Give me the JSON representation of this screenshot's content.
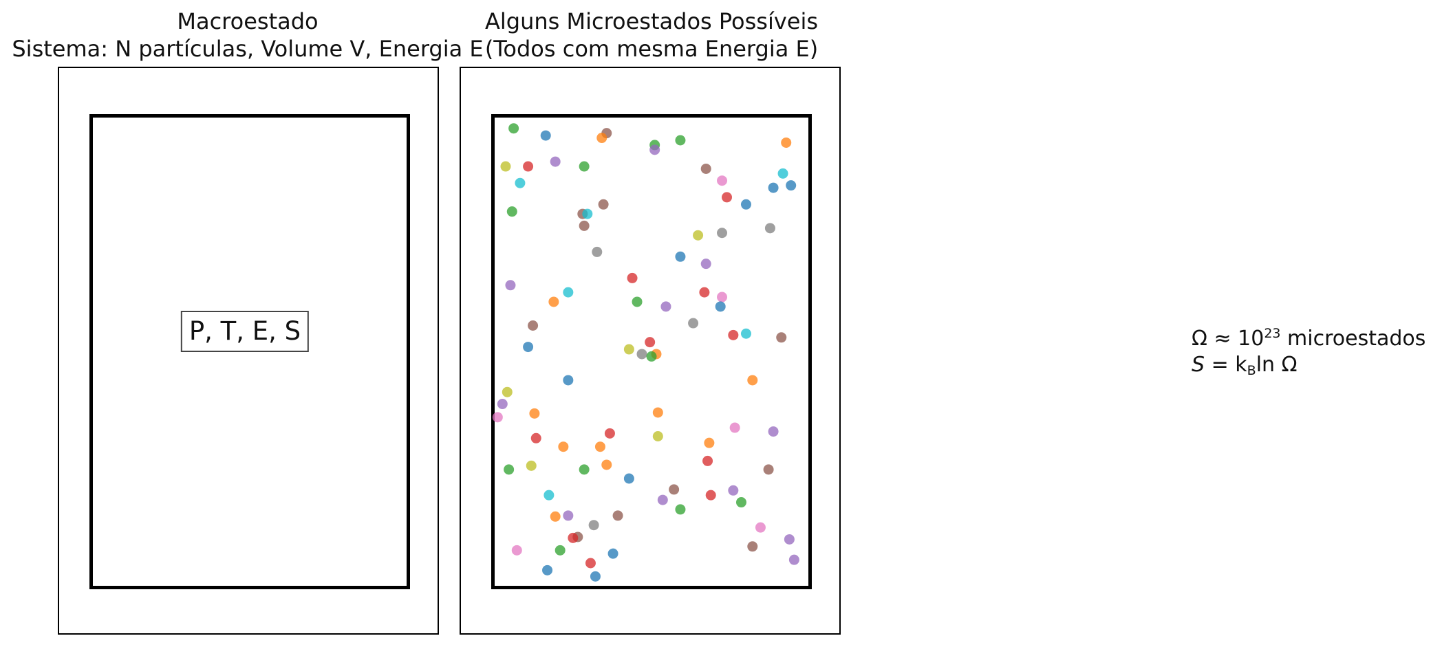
{
  "left_panel": {
    "title_line1": "Macroestado",
    "title_line2": "Sistema: N partículas, Volume V, Energia E",
    "macro_label": "P, T, E, S"
  },
  "right_panel": {
    "title_line1": "Alguns Microestados Possíveis",
    "title_line2": "(Todos com mesma Energia E)",
    "particle_colors": [
      "#1f77b4",
      "#ff7f0e",
      "#2ca02c",
      "#d62728",
      "#9467bd",
      "#8c564b",
      "#e377c2",
      "#7f7f7f",
      "#bcbd22",
      "#17becf"
    ],
    "particles": [
      [
        0.07,
        0.97,
        2
      ],
      [
        0.17,
        0.955,
        0
      ],
      [
        0.36,
        0.96,
        5
      ],
      [
        0.345,
        0.95,
        1
      ],
      [
        0.51,
        0.935,
        2
      ],
      [
        0.51,
        0.925,
        4
      ],
      [
        0.59,
        0.945,
        2
      ],
      [
        0.92,
        0.94,
        1
      ],
      [
        0.045,
        0.89,
        8
      ],
      [
        0.115,
        0.89,
        3
      ],
      [
        0.2,
        0.9,
        4
      ],
      [
        0.29,
        0.89,
        2
      ],
      [
        0.67,
        0.885,
        5
      ],
      [
        0.72,
        0.86,
        6
      ],
      [
        0.91,
        0.875,
        9
      ],
      [
        0.09,
        0.855,
        9
      ],
      [
        0.88,
        0.845,
        0
      ],
      [
        0.935,
        0.85,
        0
      ],
      [
        0.735,
        0.825,
        3
      ],
      [
        0.795,
        0.81,
        0
      ],
      [
        0.065,
        0.795,
        2
      ],
      [
        0.35,
        0.81,
        5
      ],
      [
        0.285,
        0.79,
        5
      ],
      [
        0.3,
        0.79,
        9
      ],
      [
        0.29,
        0.765,
        5
      ],
      [
        0.645,
        0.745,
        8
      ],
      [
        0.72,
        0.75,
        7
      ],
      [
        0.87,
        0.76,
        7
      ],
      [
        0.33,
        0.71,
        7
      ],
      [
        0.59,
        0.7,
        0
      ],
      [
        0.67,
        0.685,
        4
      ],
      [
        0.06,
        0.64,
        4
      ],
      [
        0.44,
        0.655,
        3
      ],
      [
        0.24,
        0.625,
        9
      ],
      [
        0.195,
        0.605,
        1
      ],
      [
        0.665,
        0.625,
        3
      ],
      [
        0.72,
        0.615,
        6
      ],
      [
        0.455,
        0.605,
        2
      ],
      [
        0.545,
        0.595,
        4
      ],
      [
        0.715,
        0.595,
        0
      ],
      [
        0.13,
        0.555,
        5
      ],
      [
        0.63,
        0.56,
        7
      ],
      [
        0.755,
        0.535,
        3
      ],
      [
        0.795,
        0.538,
        9
      ],
      [
        0.905,
        0.53,
        5
      ],
      [
        0.495,
        0.52,
        3
      ],
      [
        0.115,
        0.51,
        0
      ],
      [
        0.43,
        0.505,
        8
      ],
      [
        0.47,
        0.495,
        7
      ],
      [
        0.515,
        0.495,
        1
      ],
      [
        0.5,
        0.49,
        2
      ],
      [
        0.05,
        0.415,
        8
      ],
      [
        0.24,
        0.44,
        0
      ],
      [
        0.815,
        0.44,
        1
      ],
      [
        0.035,
        0.39,
        4
      ],
      [
        0.135,
        0.37,
        1
      ],
      [
        0.52,
        0.372,
        1
      ],
      [
        0.02,
        0.362,
        6
      ],
      [
        0.14,
        0.318,
        3
      ],
      [
        0.52,
        0.322,
        8
      ],
      [
        0.76,
        0.34,
        6
      ],
      [
        0.88,
        0.332,
        4
      ],
      [
        0.37,
        0.328,
        3
      ],
      [
        0.225,
        0.3,
        1
      ],
      [
        0.34,
        0.3,
        1
      ],
      [
        0.68,
        0.308,
        1
      ],
      [
        0.675,
        0.27,
        3
      ],
      [
        0.125,
        0.26,
        8
      ],
      [
        0.055,
        0.252,
        2
      ],
      [
        0.29,
        0.252,
        2
      ],
      [
        0.36,
        0.262,
        1
      ],
      [
        0.865,
        0.252,
        5
      ],
      [
        0.43,
        0.233,
        0
      ],
      [
        0.57,
        0.21,
        5
      ],
      [
        0.685,
        0.198,
        3
      ],
      [
        0.755,
        0.208,
        4
      ],
      [
        0.18,
        0.198,
        9
      ],
      [
        0.78,
        0.183,
        2
      ],
      [
        0.535,
        0.188,
        4
      ],
      [
        0.2,
        0.153,
        1
      ],
      [
        0.24,
        0.155,
        4
      ],
      [
        0.395,
        0.155,
        5
      ],
      [
        0.59,
        0.168,
        2
      ],
      [
        0.08,
        0.082,
        6
      ],
      [
        0.215,
        0.082,
        2
      ],
      [
        0.27,
        0.11,
        5
      ],
      [
        0.255,
        0.108,
        3
      ],
      [
        0.32,
        0.135,
        7
      ],
      [
        0.84,
        0.13,
        6
      ],
      [
        0.93,
        0.105,
        4
      ],
      [
        0.815,
        0.09,
        5
      ],
      [
        0.945,
        0.062,
        4
      ],
      [
        0.31,
        0.055,
        3
      ],
      [
        0.175,
        0.04,
        0
      ],
      [
        0.325,
        0.027,
        0
      ],
      [
        0.38,
        0.075,
        0
      ]
    ]
  },
  "formulas": {
    "omega_prefix": "Ω ≈ 10",
    "omega_exponent": "23",
    "omega_suffix": " microestados",
    "entropy_symbol": "S",
    "entropy_equals": " = k",
    "entropy_subscript": "B",
    "entropy_rhs": "ln Ω"
  }
}
